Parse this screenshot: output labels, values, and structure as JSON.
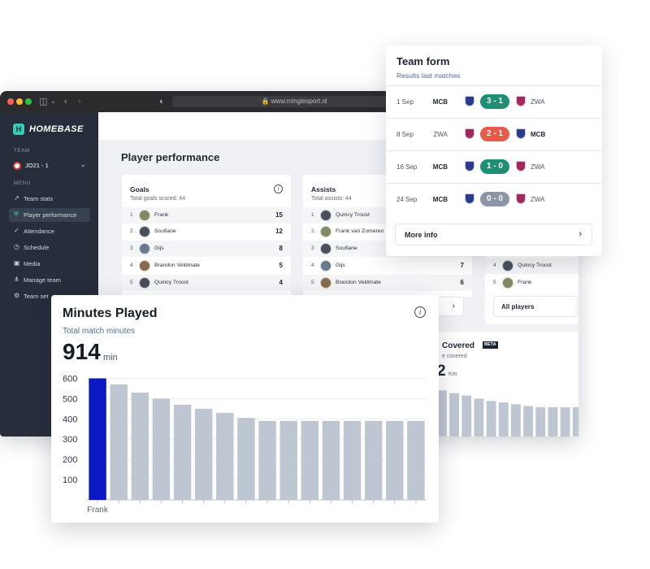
{
  "browser": {
    "url": "www.minglesport.nl",
    "colors": {
      "close": "#ff5f57",
      "minimize": "#febc2e",
      "maximize": "#28c840"
    }
  },
  "sidebar": {
    "brand": "HOMEBASE",
    "team_section": "TEAM",
    "team_name": "JO21 - 1",
    "menu_section": "MENU",
    "items": [
      {
        "label": "Team stats",
        "icon": "chart-line-icon"
      },
      {
        "label": "Player performance",
        "icon": "shield-icon",
        "active": true
      },
      {
        "label": "Attendance",
        "icon": "check-circle-icon"
      },
      {
        "label": "Schedule",
        "icon": "clock-icon"
      },
      {
        "label": "Media",
        "icon": "image-icon"
      },
      {
        "label": "Manage team",
        "icon": "users-icon"
      },
      {
        "label": "Team set",
        "icon": "gear-icon"
      }
    ]
  },
  "main": {
    "title": "Player performance",
    "goals": {
      "title": "Goals",
      "subtitle": "Total goals scored: 44",
      "rows": [
        {
          "rank": "1",
          "name": "Frank",
          "value": "15"
        },
        {
          "rank": "2",
          "name": "Soufiane",
          "value": "12"
        },
        {
          "rank": "3",
          "name": "Gijs",
          "value": "8"
        },
        {
          "rank": "4",
          "name": "Brandon Veldmate",
          "value": "5"
        },
        {
          "rank": "5",
          "name": "Quincy Troost",
          "value": "4"
        }
      ]
    },
    "assists": {
      "title": "Assists",
      "subtitle": "Total assists: 44",
      "rows": [
        {
          "rank": "1",
          "name": "Quincy Troost",
          "value": ""
        },
        {
          "rank": "2",
          "name": "Frank van Zomeren",
          "value": ""
        },
        {
          "rank": "3",
          "name": "Soufiane",
          "value": ""
        },
        {
          "rank": "4",
          "name": "Gijs",
          "value": "7"
        },
        {
          "rank": "5",
          "name": "Brandon Veldmate",
          "value": "6"
        }
      ]
    },
    "third": {
      "rows": [
        {
          "rank": "4",
          "name": "Quincy Troost"
        },
        {
          "rank": "5",
          "name": "Frank"
        }
      ],
      "all_players_label": "All players"
    },
    "distance": {
      "title": "Covered",
      "beta": "BETA",
      "subtitle": "e covered",
      "value": "2",
      "unit": "Km",
      "bar_values": [
        500,
        470,
        445,
        410,
        385,
        370,
        350,
        330,
        318,
        318,
        318,
        318
      ]
    }
  },
  "team_form": {
    "title": "Team form",
    "subtitle": "Results last matches",
    "matches": [
      {
        "date": "1 Sep",
        "home": "MCB",
        "away": "ZWA",
        "score": "3 - 1",
        "result": "win",
        "home_bold": true,
        "away_bold": false
      },
      {
        "date": "8 Sep",
        "home": "ZWA",
        "away": "MCB",
        "score": "2 - 1",
        "result": "loss",
        "home_bold": false,
        "away_bold": true
      },
      {
        "date": "16 Sep",
        "home": "MCB",
        "away": "ZWA",
        "score": "1 - 0",
        "result": "win",
        "home_bold": true,
        "away_bold": false
      },
      {
        "date": "24 Sep",
        "home": "MCB",
        "away": "ZWA",
        "score": "0 - 0",
        "result": "draw",
        "home_bold": true,
        "away_bold": false
      }
    ],
    "result_colors": {
      "win": "#1f8f72",
      "loss": "#ea5a4a",
      "draw": "#8c96a6"
    },
    "more_info_label": "More info"
  },
  "minutes_played": {
    "title": "Minutes Played",
    "subtitle": "Total match minutes",
    "value": "914",
    "unit": "min"
  },
  "chart_data": {
    "type": "bar",
    "title": "Minutes Played",
    "categories": [
      "Frank",
      "",
      "",
      "",
      "",
      "",
      "",
      "",
      "",
      "",
      "",
      "",
      "",
      "",
      "",
      ""
    ],
    "values": [
      600,
      570,
      530,
      500,
      470,
      450,
      430,
      405,
      390,
      390,
      390,
      390,
      390,
      390,
      390,
      390
    ],
    "highlight_index": 0,
    "colors": {
      "highlight": "#0b19c4",
      "default": "#bec6d2"
    },
    "yticks": [
      100,
      200,
      300,
      400,
      500,
      600
    ],
    "ylim": [
      0,
      610
    ],
    "grid": true
  }
}
